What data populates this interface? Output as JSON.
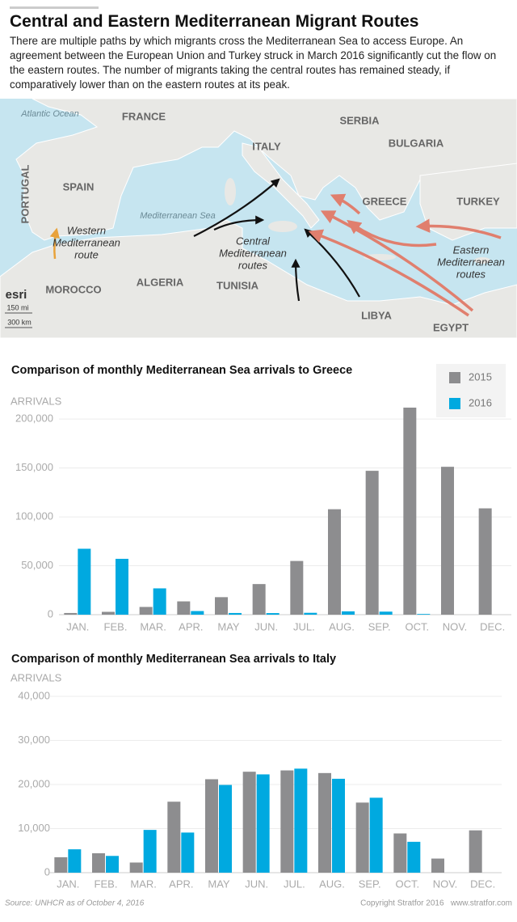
{
  "header": {
    "title": "Central and Eastern Mediterranean Migrant Routes",
    "description": "There are multiple paths by which migrants cross the Mediterranean Sea to access Europe. An agreement between the European Union and Turkey struck in March 2016 significantly cut the flow on the eastern routes. The number of migrants taking the central routes has remained steady, if comparatively lower than on the eastern routes at its peak."
  },
  "map": {
    "labels": [
      "Atlantic Ocean",
      "FRANCE",
      "ITALY",
      "SERBIA",
      "BULGARIA",
      "SPAIN",
      "PORTUGAL",
      "GREECE",
      "TURKEY",
      "Mediterranean Sea",
      "MOROCCO",
      "ALGERIA",
      "TUNISIA",
      "LIBYA",
      "EGYPT",
      "esri",
      "150 mi",
      "300 km"
    ],
    "route_labels": [
      [
        "Western",
        "Mediterranean",
        "route"
      ],
      [
        "Central",
        "Mediterranean",
        "routes"
      ],
      [
        "Eastern",
        "Mediterranean",
        "routes"
      ]
    ]
  },
  "chart_data": [
    {
      "type": "bar",
      "title": "Comparison of monthly Mediterranean Sea arrivals to Greece",
      "y_label": "ARRIVALS",
      "categories": [
        "JAN.",
        "FEB.",
        "MAR.",
        "APR.",
        "MAY",
        "JUN.",
        "JUL.",
        "AUG.",
        "SEP.",
        "OCT.",
        "NOV.",
        "DEC."
      ],
      "series": [
        {
          "name": "2015",
          "color": "#8d8d8f",
          "values": [
            1700,
            2900,
            7900,
            13600,
            17900,
            31300,
            54900,
            107800,
            147100,
            211700,
            151200,
            108700
          ]
        },
        {
          "name": "2016",
          "color": "#00a9e0",
          "values": [
            67400,
            57100,
            26900,
            3700,
            1700,
            1600,
            1900,
            3400,
            3100,
            700,
            null,
            null
          ]
        }
      ],
      "ylim": [
        0,
        215000
      ],
      "yticks": [
        0,
        {
          "value": 50000,
          "label": "50,000"
        },
        {
          "value": 100000,
          "label": "100,000"
        },
        {
          "value": 150000,
          "label": "150,000"
        },
        {
          "value": 200000,
          "label": "200,000"
        }
      ],
      "grid": true,
      "legend": "top-right"
    },
    {
      "type": "bar",
      "title": "Comparison of monthly Mediterranean Sea arrivals to Italy",
      "y_label": "ARRIVALS",
      "categories": [
        "JAN.",
        "FEB.",
        "MAR.",
        "APR.",
        "MAY",
        "JUN.",
        "JUL.",
        "AUG.",
        "SEP.",
        "OCT.",
        "NOV.",
        "DEC."
      ],
      "series": [
        {
          "color": "#8d8d8f",
          "values": [
            3500,
            4400,
            2300,
            16100,
            21200,
            22900,
            23200,
            22600,
            15900,
            8900,
            3200,
            9600
          ]
        },
        {
          "color": "#00a9e0",
          "values": [
            5300,
            3800,
            9700,
            9100,
            19900,
            22300,
            23600,
            21300,
            17000,
            7000,
            null,
            null
          ]
        }
      ],
      "ylim": [
        0,
        40000
      ],
      "yticks": [
        0,
        {
          "value": 10000,
          "label": "10,000"
        },
        {
          "value": 20000,
          "label": "20,000"
        },
        {
          "value": 30000,
          "label": "30,000"
        },
        {
          "value": 40000,
          "label": "40,000"
        }
      ],
      "grid": true
    }
  ],
  "footer": {
    "source": "Source: UNHCR as of October 4, 2016",
    "copyright": "Copyright Stratfor 2016   www.stratfor.com"
  }
}
